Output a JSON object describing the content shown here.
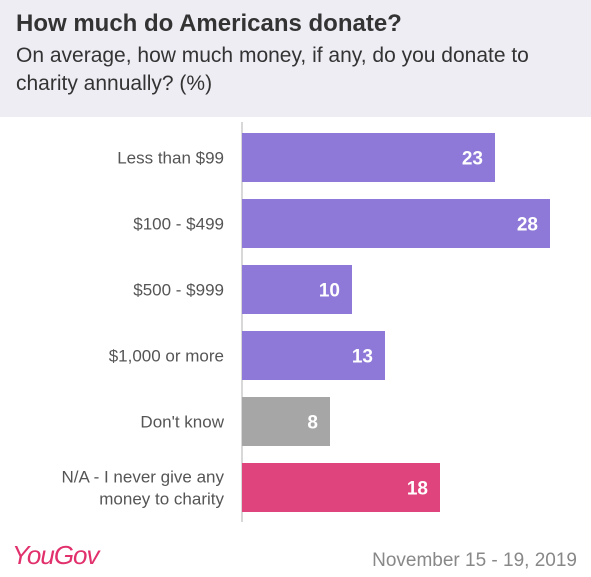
{
  "header": {
    "title": "How much do Americans donate?",
    "subtitle": "On average, how much money, if any, do you donate to charity annually? (%)"
  },
  "footer": {
    "logo": "YouGov",
    "date": "November 15 - 19, 2019"
  },
  "colors": {
    "purple": "#8e78d8",
    "gray": "#a6a6a6",
    "pink": "#e0447c",
    "header_bg": "#efedf4"
  },
  "chart_data": {
    "type": "bar",
    "orientation": "horizontal",
    "categories": [
      [
        "Less than $99"
      ],
      [
        "$100 - $499"
      ],
      [
        "$500 - $999"
      ],
      [
        "$1,000 or more"
      ],
      [
        "Don't know"
      ],
      [
        "N/A - I never give any",
        "money to charity"
      ]
    ],
    "values": [
      23,
      28,
      10,
      13,
      8,
      18
    ],
    "bar_colors": [
      "purple",
      "purple",
      "purple",
      "purple",
      "gray",
      "pink"
    ],
    "title": "How much do Americans donate?",
    "xlabel": "",
    "ylabel": "",
    "xlim": [
      0,
      28
    ],
    "data_labels": true,
    "grid": false
  }
}
